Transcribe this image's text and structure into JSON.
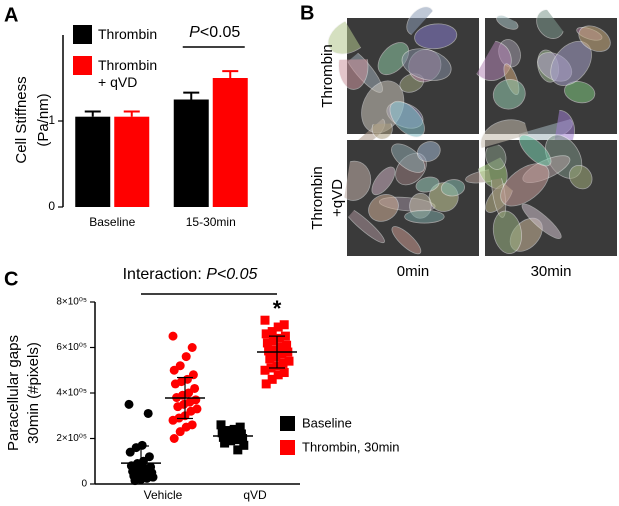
{
  "chart_data": [
    {
      "type": "bar",
      "label": "A",
      "ylabel": [
        "Cell Stiffness",
        "(Pa/nm)"
      ],
      "categories": [
        "Baseline",
        "15-30min"
      ],
      "series": [
        {
          "name": "Thrombin",
          "color": "#000000",
          "values": [
            1.05,
            1.25
          ],
          "errors": [
            0.06,
            0.08
          ]
        },
        {
          "name": "Thrombin + qVD",
          "color": "#ff0000",
          "values": [
            1.05,
            1.5
          ],
          "errors": [
            0.06,
            0.08
          ]
        }
      ],
      "annotation": "P<0.05",
      "ylim": [
        0,
        2
      ],
      "yticks": [
        0,
        1
      ]
    },
    {
      "type": "dot",
      "label": "C",
      "ylabel": [
        "Paracellular gaps",
        "30min (#pixels)"
      ],
      "categories": [
        "Vehicle",
        "qVD"
      ],
      "markers": [
        "circle",
        "square"
      ],
      "series": [
        {
          "name": "Baseline",
          "color": "#000000",
          "points": [
            [
              350000,
              310000,
              170000,
              160000,
              140000,
              120000,
              100000,
              90000,
              80000,
              75000,
              70000,
              60000,
              55000,
              50000,
              45000,
              40000,
              35000,
              30000,
              25000,
              20000,
              15000
            ],
            [
              260000,
              250000,
              240000,
              235000,
              225000,
              220000,
              215000,
              210000,
              205000,
              200000,
              195000,
              190000,
              180000,
              170000,
              150000
            ]
          ],
          "means": [
            92000,
            211000
          ],
          "sd": [
            75000,
            30000
          ]
        },
        {
          "name": "Thrombin, 30min",
          "color": "#ff0000",
          "points": [
            [
              650000,
              600000,
              560000,
              520000,
              500000,
              480000,
              460000,
              450000,
              440000,
              420000,
              400000,
              390000,
              380000,
              370000,
              360000,
              350000,
              340000,
              330000,
              320000,
              300000,
              290000,
              280000,
              260000,
              250000,
              230000,
              200000
            ],
            [
              720000,
              700000,
              690000,
              670000,
              660000,
              650000,
              640000,
              630000,
              620000,
              610000,
              600000,
              590000,
              585000,
              580000,
              570000,
              560000,
              550000,
              540000,
              530000,
              520000,
              510000,
              500000,
              490000,
              480000,
              460000,
              440000
            ]
          ],
          "means": [
            378000,
            580000
          ],
          "sd": [
            90000,
            70000
          ]
        }
      ],
      "annotation": [
        "Interaction:",
        "P<0.05"
      ],
      "significance": "*",
      "ylim": [
        0,
        800000
      ],
      "yticks": [
        0,
        {
          "value": 200000,
          "label": "2×10⁰⁵"
        },
        {
          "value": 400000,
          "label": "4×10⁰⁵"
        },
        {
          "value": 600000,
          "label": "6×10⁰⁵"
        },
        {
          "value": 800000,
          "label": "8×10⁰⁵"
        }
      ]
    }
  ],
  "image_panel": {
    "label": "B",
    "rows": [
      [
        "Thrombin"
      ],
      [
        "Thrombin",
        "+qVD"
      ]
    ],
    "columns": [
      "0min",
      "30min"
    ]
  }
}
